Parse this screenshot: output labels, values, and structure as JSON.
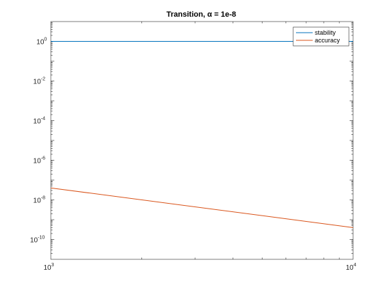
{
  "chart_data": {
    "type": "line",
    "title": "Transition, α = 1e-8",
    "xlabel": "",
    "ylabel": "",
    "xscale": "log",
    "yscale": "log",
    "xlim": [
      1000,
      10000
    ],
    "ylim": [
      1e-11,
      10
    ],
    "x_ticks": [
      {
        "value": 1000,
        "base": "10",
        "exp": "3"
      },
      {
        "value": 10000,
        "base": "10",
        "exp": "4"
      }
    ],
    "y_ticks": [
      {
        "value": 1,
        "base": "10",
        "exp": "0"
      },
      {
        "value": 0.01,
        "base": "10",
        "exp": "-2"
      },
      {
        "value": 0.0001,
        "base": "10",
        "exp": "-4"
      },
      {
        "value": 1e-06,
        "base": "10",
        "exp": "-6"
      },
      {
        "value": 1e-08,
        "base": "10",
        "exp": "-8"
      },
      {
        "value": 1e-10,
        "base": "10",
        "exp": "-10"
      }
    ],
    "grid": false,
    "legend_position": "top-right",
    "series": [
      {
        "name": "stability",
        "color": "#0072bd",
        "x": [
          1000,
          10000
        ],
        "y": [
          1,
          1
        ]
      },
      {
        "name": "accuracy",
        "color": "#d95319",
        "x": [
          1000,
          10000
        ],
        "y": [
          4e-08,
          4e-10
        ]
      }
    ]
  }
}
